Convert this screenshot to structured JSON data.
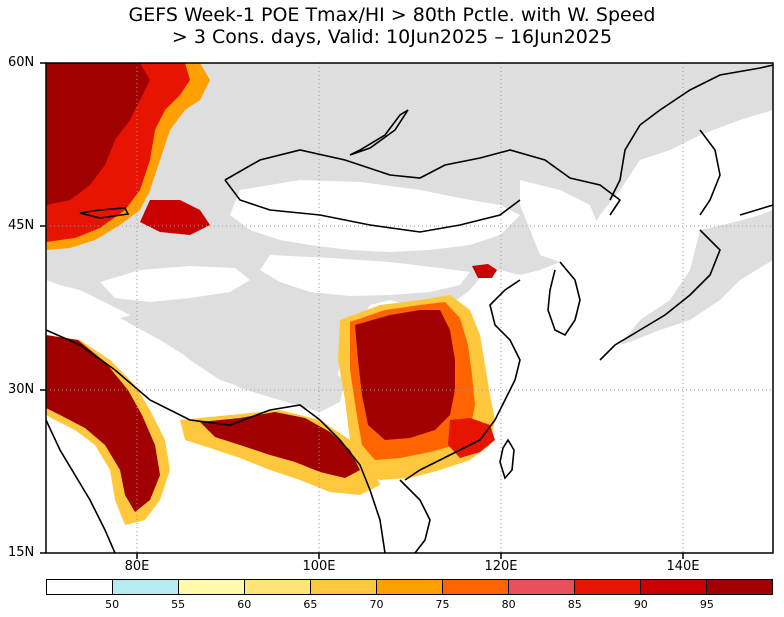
{
  "title_line1": "GEFS Week-1 POE Tmax/HI > 80th Pctle. with W. Speed",
  "title_line2": "> 3 Cons. days, Valid: 10Jun2025 – 16Jun2025",
  "lat_labels": [
    "60N",
    "45N",
    "30N",
    "15N"
  ],
  "lon_labels": [
    "80E",
    "100E",
    "120E",
    "140E"
  ],
  "colorbar": {
    "colors": [
      "#ffffff",
      "#b4ecf2",
      "#fffaaa",
      "#ffe478",
      "#ffc83c",
      "#ffa000",
      "#ff6400",
      "#e8505a",
      "#e61400",
      "#c80000",
      "#a00000"
    ],
    "labels": [
      "50",
      "55",
      "60",
      "65",
      "70",
      "75",
      "80",
      "85",
      "90",
      "95"
    ]
  },
  "map_colors": {
    "no_data": "#dedede",
    "land_white": "#ffffff",
    "outline": "#000000",
    "grid": "#999999"
  }
}
